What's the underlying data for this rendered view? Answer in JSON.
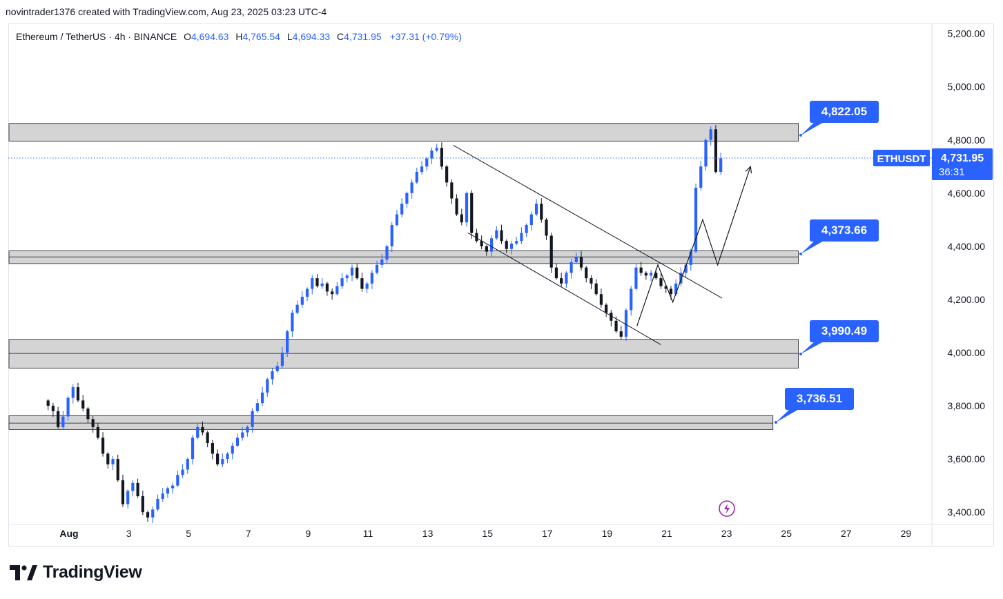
{
  "header": {
    "credit": "novintrader1376 created with TradingView.com, Aug 23, 2025 03:23 UTC-4"
  },
  "legend": {
    "symbol": "Ethereum / TetherUS · 4h · BINANCE",
    "open_label": "O",
    "open": "4,694.63",
    "high_label": "H",
    "high": "4,765.54",
    "low_label": "L",
    "low": "4,694.33",
    "close_label": "C",
    "close": "4,731.95",
    "change": "+37.31 (+0.79%)"
  },
  "ticker": {
    "symbol": "ETHUSDT",
    "price": "4,731.95",
    "countdown": "36:31"
  },
  "brand": {
    "name": "TradingView"
  },
  "colors": {
    "up": "#2962ff",
    "down": "#131722",
    "zone": "#d4d4d4",
    "callout": "#2962ff",
    "grid": "#e0e3eb",
    "bolt": "#9c27b0"
  },
  "chart_data": {
    "type": "candlestick",
    "title": "Ethereum / TetherUS · 4h · BINANCE",
    "xlabel": "",
    "ylabel": "",
    "ylim": [
      3300,
      5250
    ],
    "x_ticks": [
      "Aug",
      "3",
      "5",
      "7",
      "9",
      "11",
      "13",
      "15",
      "17",
      "19",
      "21",
      "23",
      "25",
      "27",
      "29"
    ],
    "y_ticks": [
      {
        "value": 3400,
        "label": "3,400.00"
      },
      {
        "value": 3600,
        "label": "3,600.00"
      },
      {
        "value": 3800,
        "label": "3,800.00"
      },
      {
        "value": 4000,
        "label": "4,000.00"
      },
      {
        "value": 4200,
        "label": "4,200.00"
      },
      {
        "value": 4400,
        "label": "4,400.00"
      },
      {
        "value": 4600,
        "label": "4,600.00"
      },
      {
        "value": 4800,
        "label": "4,800.00"
      },
      {
        "value": 5000,
        "label": "5,000.00"
      },
      {
        "value": 5200,
        "label": "5,200.00"
      }
    ],
    "last_price": 4731.95,
    "zones": [
      {
        "lo": 4795,
        "hi": 4862,
        "mid": 4862,
        "end_day": 25.4,
        "label": "4,822.05"
      },
      {
        "lo": 4335,
        "hi": 4383,
        "mid": 4360,
        "end_day": 25.4,
        "label": "4,373.66"
      },
      {
        "lo": 3942,
        "hi": 4050,
        "mid": 3997,
        "end_day": 25.4,
        "label": "3,990.49"
      },
      {
        "lo": 3711,
        "hi": 3763,
        "mid": 3735,
        "end_day": 24.55,
        "label": "3,736.51"
      }
    ],
    "series": [
      {
        "name": "ETHUSDT",
        "start_day": 0.3,
        "step_days": 0.1667,
        "closes": [
          3800,
          3780,
          3720,
          3760,
          3830,
          3870,
          3820,
          3790,
          3750,
          3720,
          3680,
          3620,
          3580,
          3600,
          3520,
          3430,
          3480,
          3510,
          3460,
          3400,
          3380,
          3410,
          3450,
          3470,
          3490,
          3500,
          3540,
          3560,
          3600,
          3680,
          3720,
          3700,
          3660,
          3620,
          3580,
          3600,
          3620,
          3650,
          3680,
          3700,
          3720,
          3780,
          3810,
          3850,
          3900,
          3930,
          3950,
          4000,
          4080,
          4150,
          4180,
          4210,
          4240,
          4280,
          4250,
          4260,
          4230,
          4220,
          4250,
          4280,
          4290,
          4320,
          4280,
          4240,
          4260,
          4300,
          4330,
          4350,
          4400,
          4480,
          4520,
          4560,
          4600,
          4640,
          4680,
          4700,
          4730,
          4760,
          4770,
          4700,
          4640,
          4580,
          4520,
          4490,
          4600,
          4450,
          4420,
          4400,
          4380,
          4430,
          4460,
          4420,
          4390,
          4410,
          4420,
          4450,
          4480,
          4520,
          4560,
          4500,
          4440,
          4320,
          4280,
          4260,
          4300,
          4340,
          4360,
          4320,
          4280,
          4260,
          4220,
          4180,
          4150,
          4120,
          4080,
          4060,
          4160,
          4240,
          4320,
          4300,
          4290,
          4300,
          4280,
          4250,
          4240,
          4220,
          4260,
          4300,
          4330,
          4380,
          4620,
          4700,
          4800,
          4840,
          4680,
          4731
        ]
      }
    ],
    "annotations": [
      {
        "type": "channel-line",
        "from": [
          13.85,
          4780
        ],
        "to": [
          22.85,
          4205
        ]
      },
      {
        "type": "channel-line",
        "from": [
          14.35,
          4450
        ],
        "to": [
          20.8,
          4030
        ]
      },
      {
        "type": "path-arrow",
        "points": [
          [
            20.0,
            4100
          ],
          [
            20.7,
            4330
          ],
          [
            21.2,
            4190
          ],
          [
            22.2,
            4500
          ],
          [
            22.7,
            4330
          ],
          [
            23.8,
            4700
          ]
        ]
      }
    ]
  }
}
